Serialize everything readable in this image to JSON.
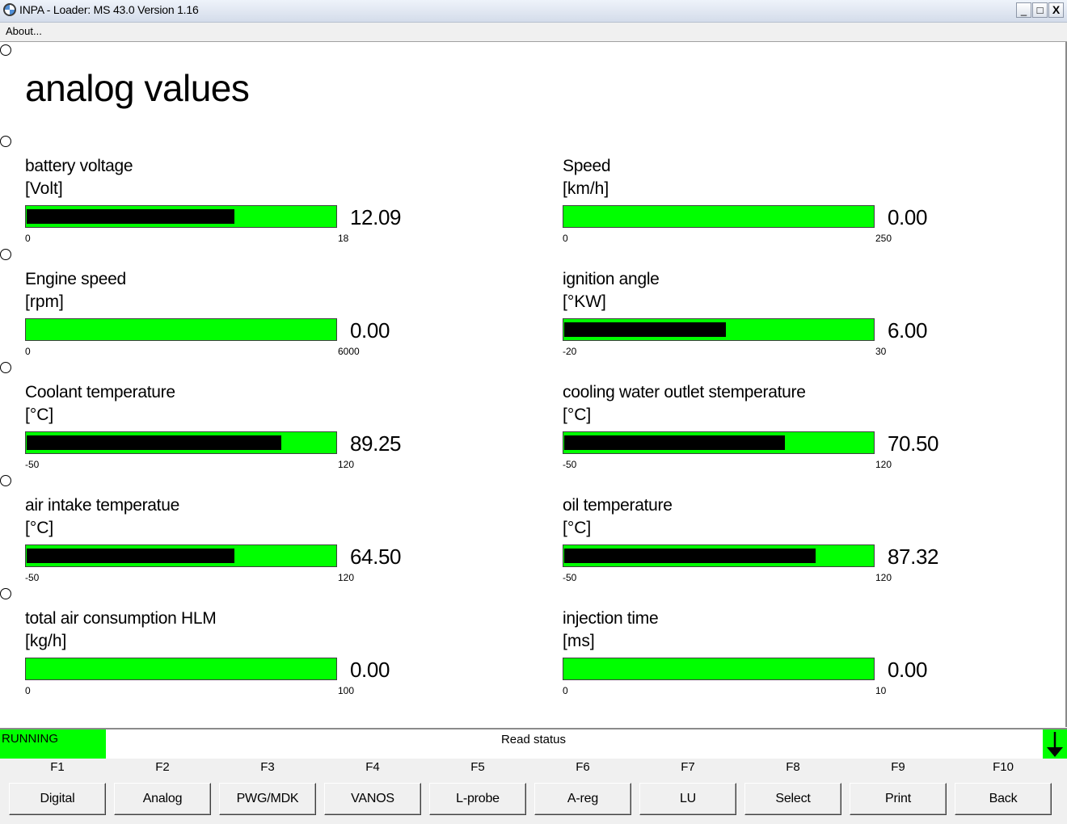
{
  "window": {
    "title": "INPA - Loader:  MS 43.0 Version 1.16",
    "buttons": {
      "minimize": "_",
      "maximize": "□",
      "close": "X"
    }
  },
  "menu": {
    "items": [
      "About..."
    ]
  },
  "page": {
    "title": "analog values"
  },
  "gauges": [
    {
      "label": "battery voltage",
      "unit": "[Volt]",
      "value": "12.09",
      "min": "0",
      "max": "18",
      "fill_fraction": 0.67
    },
    {
      "label": "Speed",
      "unit": "[km/h]",
      "value": "0.00",
      "min": "0",
      "max": "250",
      "fill_fraction": 0.0
    },
    {
      "label": "Engine speed",
      "unit": "[rpm]",
      "value": "0.00",
      "min": "0",
      "max": "6000",
      "fill_fraction": 0.0
    },
    {
      "label": "ignition angle",
      "unit": "[°KW]",
      "value": "6.00",
      "min": "-20",
      "max": "30",
      "fill_fraction": 0.52
    },
    {
      "label": "Coolant temperature",
      "unit": "[°C]",
      "value": "89.25",
      "min": "-50",
      "max": "120",
      "fill_fraction": 0.82
    },
    {
      "label": "cooling water outlet stemperature",
      "unit": "[°C]",
      "value": "70.50",
      "min": "-50",
      "max": "120",
      "fill_fraction": 0.71
    },
    {
      "label": "air intake temperatue",
      "unit": "[°C]",
      "value": "64.50",
      "min": "-50",
      "max": "120",
      "fill_fraction": 0.67
    },
    {
      "label": "oil temperature",
      "unit": "[°C]",
      "value": "87.32",
      "min": "-50",
      "max": "120",
      "fill_fraction": 0.81
    },
    {
      "label": "total air consumption HLM",
      "unit": "[kg/h]",
      "value": "0.00",
      "min": "0",
      "max": "100",
      "fill_fraction": 0.0
    },
    {
      "label": "injection time",
      "unit": "[ms]",
      "value": "0.00",
      "min": "0",
      "max": "10",
      "fill_fraction": 0.0
    }
  ],
  "status": {
    "state": "RUNNING",
    "message": "Read status",
    "state_color": "#00ff00"
  },
  "fkeys": [
    {
      "key": "F1",
      "label": "Digital"
    },
    {
      "key": "F2",
      "label": "Analog"
    },
    {
      "key": "F3",
      "label": "PWG/MDK"
    },
    {
      "key": "F4",
      "label": "VANOS"
    },
    {
      "key": "F5",
      "label": "L-probe"
    },
    {
      "key": "F6",
      "label": "A-reg"
    },
    {
      "key": "F7",
      "label": "LU"
    },
    {
      "key": "F8",
      "label": "Select"
    },
    {
      "key": "F9",
      "label": "Print"
    },
    {
      "key": "F10",
      "label": "Back"
    }
  ],
  "colors": {
    "bar": "#00ff00",
    "fill": "#000000",
    "status": "#00ff00"
  }
}
